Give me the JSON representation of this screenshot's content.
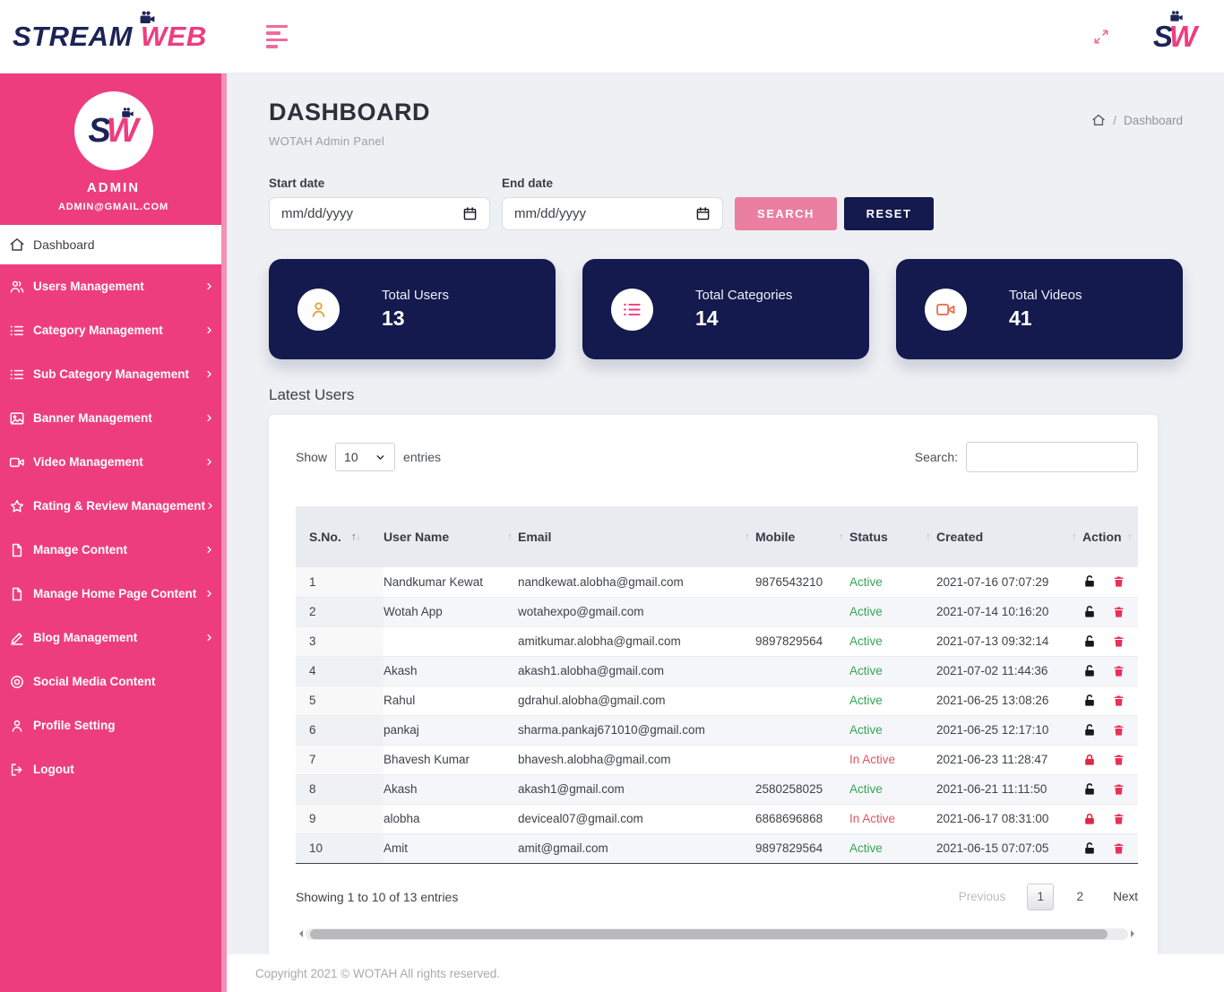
{
  "header": {
    "logo_stream": "STREAM",
    "logo_web": "WEB",
    "brand_s": "S",
    "brand_w": "W"
  },
  "sidebar": {
    "profile": {
      "avatar_s": "S",
      "avatar_w": "W",
      "name": "ADMIN",
      "email": "ADMIN@GMAIL.COM"
    },
    "items": [
      {
        "label": "Dashboard",
        "icon": "home",
        "chevron": false,
        "active": true
      },
      {
        "label": "Users Management",
        "icon": "users",
        "chevron": true,
        "active": false
      },
      {
        "label": "Category Management",
        "icon": "list",
        "chevron": true,
        "active": false
      },
      {
        "label": "Sub Category Management",
        "icon": "list",
        "chevron": true,
        "active": false
      },
      {
        "label": "Banner Management",
        "icon": "image",
        "chevron": true,
        "active": false
      },
      {
        "label": "Video Management",
        "icon": "video",
        "chevron": true,
        "active": false
      },
      {
        "label": "Rating & Review Management",
        "icon": "star",
        "chevron": true,
        "active": false
      },
      {
        "label": "Manage Content",
        "icon": "file",
        "chevron": true,
        "active": false
      },
      {
        "label": "Manage Home Page Content",
        "icon": "file",
        "chevron": true,
        "active": false
      },
      {
        "label": "Blog Management",
        "icon": "edit",
        "chevron": true,
        "active": false
      },
      {
        "label": "Social Media Content",
        "icon": "target",
        "chevron": false,
        "active": false
      },
      {
        "label": "Profile Setting",
        "icon": "user",
        "chevron": false,
        "active": false
      },
      {
        "label": "Logout",
        "icon": "logout",
        "chevron": false,
        "active": false
      }
    ]
  },
  "page": {
    "title": "DASHBOARD",
    "subtitle": "WOTAH Admin Panel",
    "breadcrumb": "Dashboard"
  },
  "filters": {
    "start_label": "Start date",
    "end_label": "End date",
    "date_placeholder": "mm/dd/yyyy",
    "search_button": "SEARCH",
    "reset_button": "RESET"
  },
  "stats": [
    {
      "label": "Total Users",
      "value": "13",
      "icon": "user",
      "icon_color": "#E8A33D"
    },
    {
      "label": "Total Categories",
      "value": "14",
      "icon": "list",
      "icon_color": "#EE3D7F"
    },
    {
      "label": "Total Videos",
      "value": "41",
      "icon": "video",
      "icon_color": "#E87358"
    }
  ],
  "table": {
    "section_title": "Latest Users",
    "show_label": "Show",
    "entries_value": "10",
    "entries_label": "entries",
    "search_label": "Search:",
    "columns": [
      "S.No.",
      "User Name",
      "Email",
      "Mobile",
      "Status",
      "Created",
      "Action"
    ],
    "rows": [
      {
        "sno": "1",
        "name": "Nandkumar Kewat",
        "email": "nandkewat.alobha@gmail.com",
        "mobile": "9876543210",
        "status": "Active",
        "created": "2021-07-16 07:07:29"
      },
      {
        "sno": "2",
        "name": "Wotah App",
        "email": "wotahexpo@gmail.com",
        "mobile": "",
        "status": "Active",
        "created": "2021-07-14 10:16:20"
      },
      {
        "sno": "3",
        "name": "",
        "email": "amitkumar.alobha@gmail.com",
        "mobile": "9897829564",
        "status": "Active",
        "created": "2021-07-13 09:32:14"
      },
      {
        "sno": "4",
        "name": "Akash",
        "email": "akash1.alobha@gmail.com",
        "mobile": "",
        "status": "Active",
        "created": "2021-07-02 11:44:36"
      },
      {
        "sno": "5",
        "name": "Rahul",
        "email": "gdrahul.alobha@gmail.com",
        "mobile": "",
        "status": "Active",
        "created": "2021-06-25 13:08:26"
      },
      {
        "sno": "6",
        "name": "pankaj",
        "email": "sharma.pankaj671010@gmail.com",
        "mobile": "",
        "status": "Active",
        "created": "2021-06-25 12:17:10"
      },
      {
        "sno": "7",
        "name": "Bhavesh Kumar",
        "email": "bhavesh.alobha@gmail.com",
        "mobile": "",
        "status": "In Active",
        "created": "2021-06-23 11:28:47"
      },
      {
        "sno": "8",
        "name": "Akash",
        "email": "akash1@gmail.com",
        "mobile": "2580258025",
        "status": "Active",
        "created": "2021-06-21 11:11:50"
      },
      {
        "sno": "9",
        "name": "alobha",
        "email": "deviceal07@gmail.com",
        "mobile": "6868696868",
        "status": "In Active",
        "created": "2021-06-17 08:31:00"
      },
      {
        "sno": "10",
        "name": "Amit",
        "email": "amit@gmail.com",
        "mobile": "9897829564",
        "status": "Active",
        "created": "2021-06-15 07:07:05"
      }
    ],
    "info": "Showing 1 to 10 of 13 entries",
    "pagination": {
      "previous": "Previous",
      "pages": [
        "1",
        "2"
      ],
      "current": "1",
      "next": "Next"
    }
  },
  "footer": {
    "copyright": "Copyright 2021 © WOTAH All rights reserved."
  },
  "colors": {
    "sidebar_pink": "#EE3D7F",
    "navy": "#141A4D",
    "search_button_pink": "#EA7FA2",
    "active_green": "#37A457",
    "inactive_red": "#E25663",
    "trash_red": "#EA3058",
    "lock_black": "#17191E",
    "lock_red": "#E02742"
  }
}
